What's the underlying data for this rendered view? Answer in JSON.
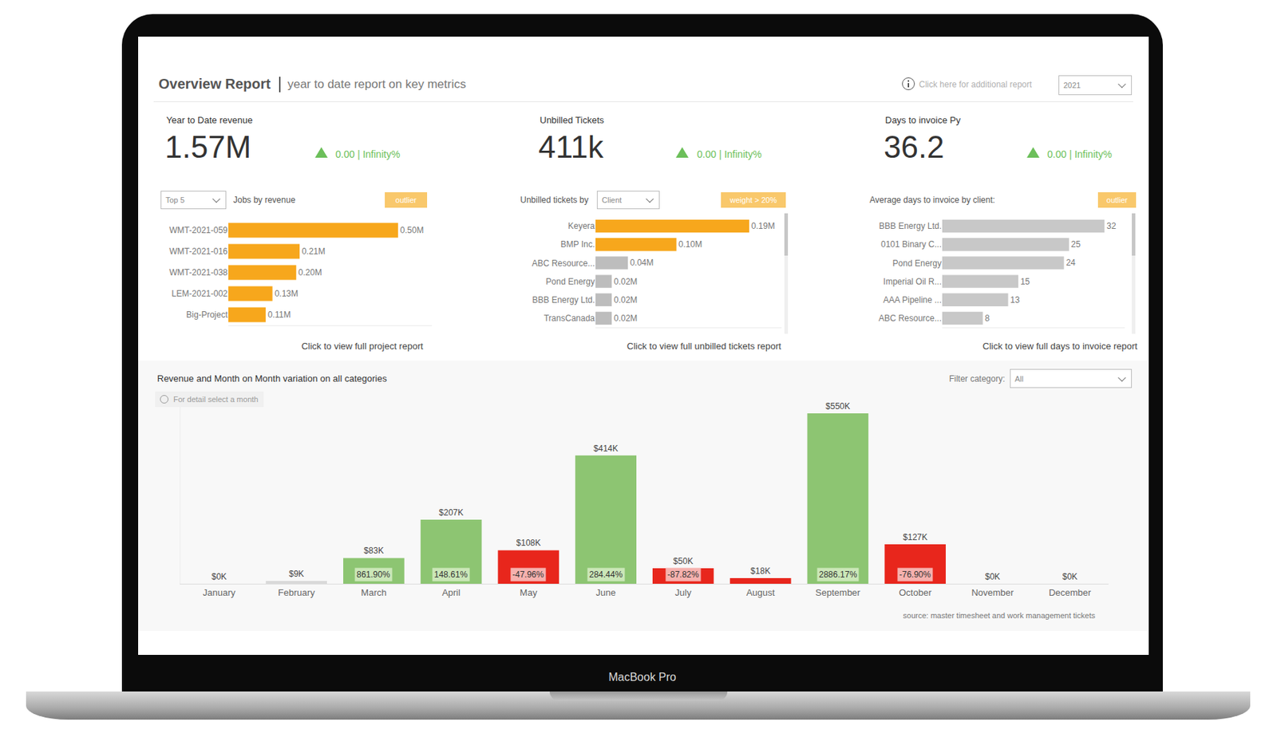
{
  "device": {
    "label": "MacBook Pro"
  },
  "header": {
    "title": "Overview Report",
    "subtitle": "year to date report on key metrics",
    "link": "Click here for additional report",
    "year": "2021"
  },
  "kpis": [
    {
      "label": "Year to Date revenue",
      "value": "1.57M",
      "change": "0.00 | Infinity%"
    },
    {
      "label": "Unbilled Tickets",
      "value": "411k",
      "change": "0.00 | Infinity%"
    },
    {
      "label": "Days to invoice Py",
      "value": "36.2",
      "change": "0.00 | Infinity%"
    }
  ],
  "chart_data": [
    {
      "type": "bar",
      "orientation": "horizontal",
      "title": "Jobs by revenue",
      "selector": "Top 5",
      "badge": "outlier",
      "footer": "Click to view full project report",
      "categories": [
        "WMT-2021-059",
        "WMT-2021-016",
        "WMT-2021-038",
        "LEM-2021-002",
        "Big-Project"
      ],
      "values": [
        0.5,
        0.21,
        0.2,
        0.13,
        0.11
      ],
      "value_labels": [
        "0.50M",
        "0.21M",
        "0.20M",
        "0.13M",
        "0.11M"
      ],
      "colors": [
        "#f7a71c",
        "#f7a71c",
        "#f7a71c",
        "#f7a71c",
        "#f7a71c"
      ],
      "xlim": [
        0,
        0.6
      ],
      "tick_labels": "y",
      "data_labels": true
    },
    {
      "type": "bar",
      "orientation": "horizontal",
      "title": "Unbilled tickets by",
      "selector": "Client",
      "badge": "weight > 20%",
      "footer": "Click to view full unbilled tickets report",
      "categories": [
        "Keyera",
        "BMP Inc.",
        "ABC Resource...",
        "Pond Energy",
        "BBB Energy Ltd.",
        "TransCanada"
      ],
      "values": [
        0.19,
        0.1,
        0.04,
        0.02,
        0.02,
        0.02
      ],
      "value_labels": [
        "0.19M",
        "0.10M",
        "0.04M",
        "0.02M",
        "0.02M",
        "0.02M"
      ],
      "colors": [
        "#f7a71c",
        "#f7a71c",
        "#bdbdbd",
        "#bdbdbd",
        "#bdbdbd",
        "#bdbdbd"
      ],
      "xlim": [
        0,
        0.23
      ],
      "tick_labels": "y",
      "data_labels": true
    },
    {
      "type": "bar",
      "orientation": "horizontal",
      "title": "Average days to invoice by client:",
      "badge": "outlier",
      "footer": "Click to view full days to invoice report",
      "categories": [
        "BBB Energy Ltd.",
        "0101 Binary C...",
        "Pond Energy",
        "Imperial Oil R...",
        "AAA Pipeline ...",
        "ABC Resource..."
      ],
      "values": [
        32,
        25,
        24,
        15,
        13,
        8
      ],
      "colors": [
        "#c8c8c8",
        "#c8c8c8",
        "#c8c8c8",
        "#c8c8c8",
        "#c8c8c8",
        "#c8c8c8"
      ],
      "xlim": [
        0,
        36
      ],
      "tick_labels": "y",
      "data_labels": true
    },
    {
      "type": "bar",
      "title": "Revenue and Month on Month variation on all categories",
      "note": "For detail select a month",
      "filter_label": "Filter category:",
      "filter_value": "All",
      "source": "source: master timesheet and work management tickets",
      "categories": [
        "January",
        "February",
        "March",
        "April",
        "May",
        "June",
        "July",
        "August",
        "September",
        "October",
        "November",
        "December"
      ],
      "values": [
        0,
        9,
        83,
        207,
        108,
        414,
        50,
        18,
        550,
        127,
        0,
        0
      ],
      "value_labels": [
        "$0K",
        "$9K",
        "$83K",
        "$207K",
        "$108K",
        "$414K",
        "$50K",
        "$18K",
        "$550K",
        "$127K",
        "$0K",
        "$0K"
      ],
      "variation_labels": [
        null,
        null,
        "861.90%",
        "148.61%",
        "-47.96%",
        "284.44%",
        "-87.82%",
        null,
        "2886.17%",
        "-76.90%",
        null,
        null
      ],
      "colors": [
        "#d9d9d9",
        "#d9d9d9",
        "#8dc572",
        "#8dc572",
        "#e8261c",
        "#8dc572",
        "#e8261c",
        "#e8261c",
        "#8dc572",
        "#e8261c",
        "#d9d9d9",
        "#d9d9d9"
      ],
      "ylim": [
        0,
        600
      ],
      "tick_labels": "x",
      "data_labels": true
    }
  ]
}
